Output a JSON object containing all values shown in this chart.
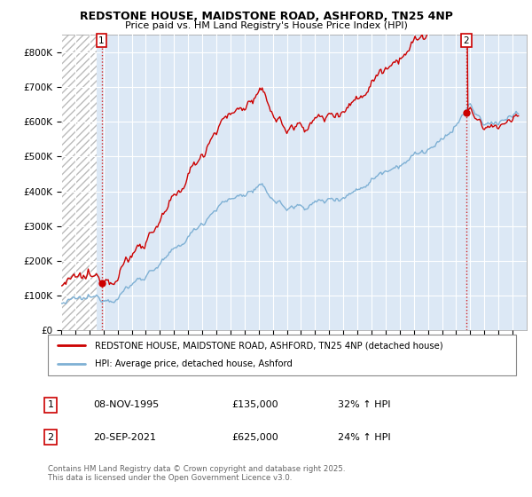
{
  "title1": "REDSTONE HOUSE, MAIDSTONE ROAD, ASHFORD, TN25 4NP",
  "title2": "Price paid vs. HM Land Registry's House Price Index (HPI)",
  "ylim": [
    0,
    850000
  ],
  "yticks": [
    0,
    100000,
    200000,
    300000,
    400000,
    500000,
    600000,
    700000,
    800000
  ],
  "ytick_labels": [
    "£0",
    "£100K",
    "£200K",
    "£300K",
    "£400K",
    "£500K",
    "£600K",
    "£700K",
    "£800K"
  ],
  "bg_color": "#ffffff",
  "plot_bg_color": "#dce8f5",
  "grid_color": "#ffffff",
  "purchase1_year": 1995.86,
  "purchase1_price": 135000,
  "purchase1_date": "08-NOV-1995",
  "purchase1_hpi": "32% ↑ HPI",
  "purchase2_year": 2021.72,
  "purchase2_price": 625000,
  "purchase2_date": "20-SEP-2021",
  "purchase2_hpi": "24% ↑ HPI",
  "legend_line1": "REDSTONE HOUSE, MAIDSTONE ROAD, ASHFORD, TN25 4NP (detached house)",
  "legend_line2": "HPI: Average price, detached house, Ashford",
  "footnote": "Contains HM Land Registry data © Crown copyright and database right 2025.\nThis data is licensed under the Open Government Licence v3.0.",
  "red_color": "#cc0000",
  "hpi_line_color": "#7eb0d4",
  "xmin": 1993,
  "xmax": 2026
}
